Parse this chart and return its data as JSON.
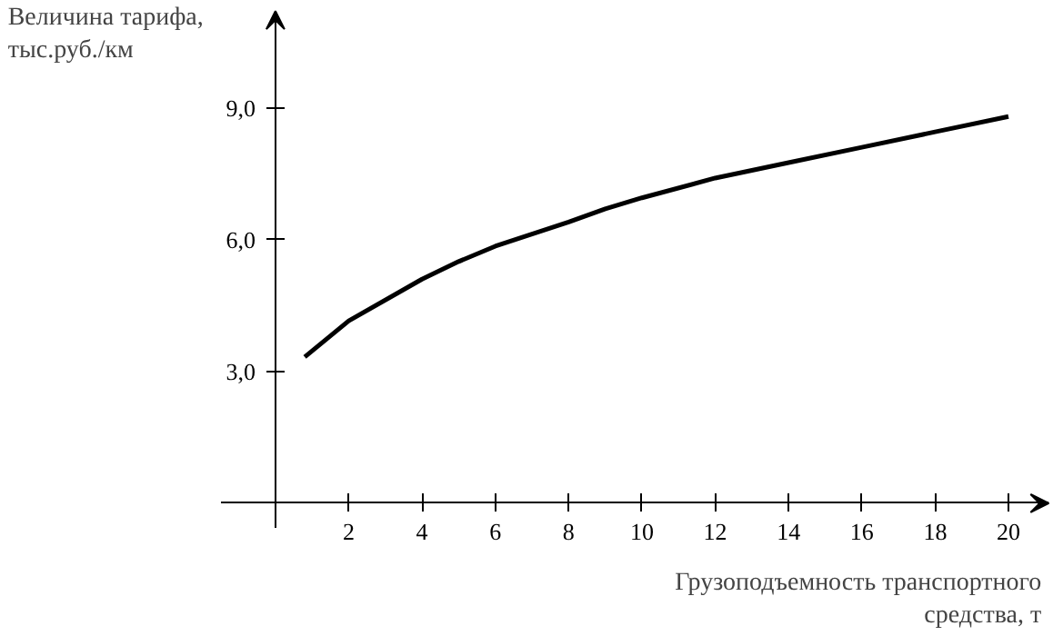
{
  "chart_data": {
    "type": "line",
    "ylabel": "Величина тарифа,\nтыс.руб./км",
    "xlabel": "Грузоподъемность транспортного\nсредства, т",
    "x": [
      0.8,
      2,
      4,
      5,
      6,
      8,
      9,
      10,
      12,
      14,
      16,
      18,
      20
    ],
    "series": [
      {
        "color": "#000000",
        "values": [
          3.33,
          4.15,
          5.1,
          5.5,
          5.85,
          6.4,
          6.7,
          6.95,
          7.4,
          7.75,
          8.1,
          8.45,
          8.8
        ]
      }
    ],
    "xlim": [
      -1.5,
      21.1
    ],
    "ylim": [
      -0.55,
      11.2
    ],
    "xticks": [
      2,
      4,
      6,
      8,
      10,
      12,
      14,
      16,
      18,
      20
    ],
    "yticks": [
      {
        "value": 3,
        "label": "3,0"
      },
      {
        "value": 6,
        "label": "6,0"
      },
      {
        "value": 9,
        "label": "9,0"
      }
    ],
    "grid": false,
    "marker": "none",
    "line_style": "solid"
  }
}
